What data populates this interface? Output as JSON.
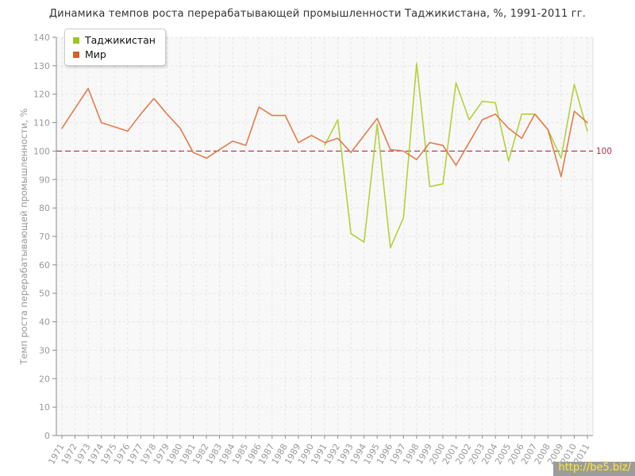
{
  "chart": {
    "title": "Динамика темпов роста перерабатывающей промышленности Таджикистана, %, 1991-2011 гг.",
    "ylabel": "Темп роста перерабатывающей промышленности, %"
  },
  "watermark": {
    "text": "http://be5.biz/"
  },
  "chart_data": {
    "type": "line",
    "title": "Динамика темпов роста перерабатывающей промышленности Таджикистана, %, 1991-2011 гг.",
    "xlabel": "",
    "ylabel": "Темп роста перерабатывающей промышленности, %",
    "ylim": [
      0,
      140
    ],
    "ytick_step": 10,
    "grid": true,
    "legend_position": "top-left",
    "x": [
      1971,
      1972,
      1973,
      1974,
      1975,
      1976,
      1977,
      1978,
      1979,
      1980,
      1981,
      1982,
      1983,
      1984,
      1985,
      1986,
      1987,
      1988,
      1989,
      1990,
      1991,
      1992,
      1993,
      1994,
      1995,
      1996,
      1997,
      1998,
      1999,
      2000,
      2001,
      2002,
      2003,
      2004,
      2005,
      2006,
      2007,
      2008,
      2009,
      2010,
      2011
    ],
    "series": [
      {
        "id": "tajikistan",
        "name": "Таджикистан",
        "color": "#b3d13a",
        "legend_color": "#a2c41e",
        "values": [
          null,
          null,
          null,
          null,
          null,
          null,
          null,
          null,
          null,
          null,
          null,
          null,
          null,
          null,
          null,
          null,
          null,
          null,
          null,
          null,
          102,
          111,
          71,
          68,
          109.5,
          66,
          76.5,
          130.8,
          87.5,
          88.5,
          124,
          111,
          117.5,
          117,
          96.5,
          113,
          113,
          107.5,
          97.5,
          123.5,
          107
        ]
      },
      {
        "id": "world",
        "name": "Мир",
        "color": "#e57b4a",
        "legend_color": "#d2612e",
        "values": [
          108,
          115,
          122,
          110,
          108.5,
          107,
          113,
          118.5,
          113,
          108,
          99.5,
          97.5,
          100.5,
          103.5,
          102,
          115.5,
          112.5,
          112.5,
          103,
          105.5,
          103,
          104.5,
          99.5,
          105.5,
          111.5,
          100.5,
          100,
          97,
          103,
          102,
          95,
          103,
          111,
          113,
          108,
          104.5,
          113,
          107.5,
          91,
          114,
          110
        ]
      }
    ],
    "ref_line": {
      "value": 100,
      "label": "100",
      "color": "#a83248"
    },
    "colors": {
      "plot_bg": "#f8f8f8",
      "grid": "#e4e4e4",
      "axis": "#8a8a8a",
      "tick_label": "#999999",
      "border": "#e0e0e0"
    }
  }
}
